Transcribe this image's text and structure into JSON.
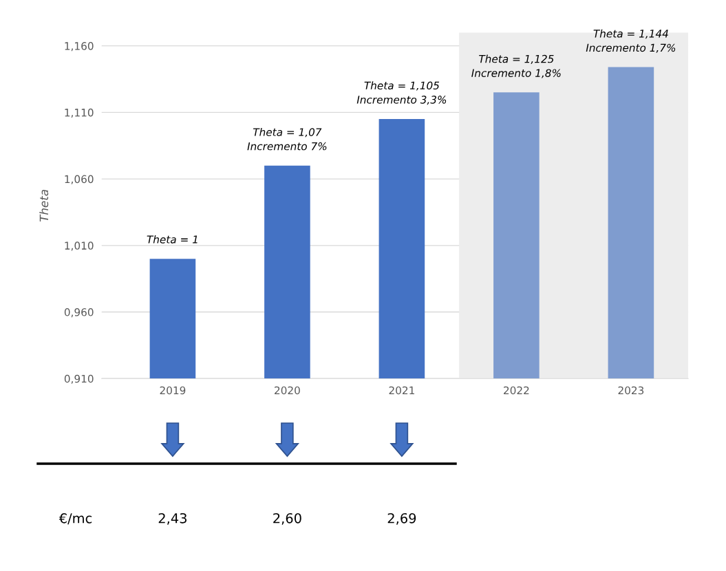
{
  "chart_data": {
    "type": "bar",
    "ylabel": "Theta",
    "categories": [
      "2019",
      "2020",
      "2021",
      "2022",
      "2023"
    ],
    "values": [
      1,
      1.07,
      1.105,
      1.125,
      1.144
    ],
    "colors": [
      "#4472c4",
      "#4472c4",
      "#4472c4",
      "#7f9ccf",
      "#7f9ccf"
    ],
    "value_labels": [
      "Theta = 1",
      "Theta = 1,07\nIncremento 7%",
      "Theta = 1,105\nIncremento 3,3%",
      "Theta = 1,125\nIncremento 1,8%",
      "Theta = 1,144\nIncremento 1,7%"
    ],
    "ylim": [
      0.91,
      1.17
    ],
    "yticks": [
      {
        "value": 0.91,
        "label": "0,910"
      },
      {
        "value": 0.96,
        "label": "0,960"
      },
      {
        "value": 1.01,
        "label": "1,010"
      },
      {
        "value": 1.06,
        "label": "1,060"
      },
      {
        "value": 1.11,
        "label": "1,110"
      },
      {
        "value": 1.16,
        "label": "1,160"
      }
    ],
    "grid": "y",
    "bands": [
      {
        "axis": "x",
        "from": "2022",
        "to": "2023",
        "color": "#ededed"
      }
    ],
    "annotations": [
      "€/mc",
      "2,43",
      "2,60",
      "2,69"
    ]
  }
}
